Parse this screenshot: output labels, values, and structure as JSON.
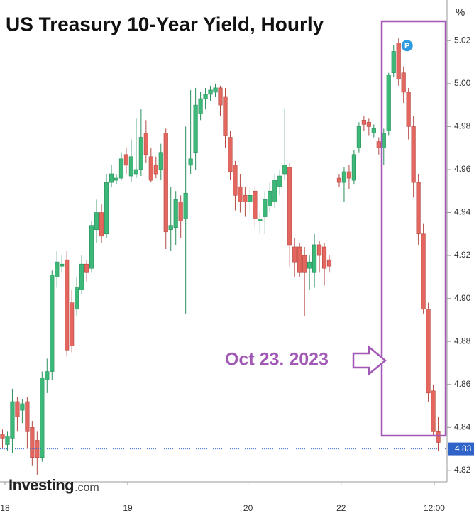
{
  "chart_data": {
    "type": "candlestick",
    "title": "US Treasury 10-Year Yield, Hourly",
    "y_unit": "%",
    "annotation": "Oct 23. 2023",
    "marker": "P",
    "brand": "Investing",
    "brand_suffix": ".com",
    "up_color": "#3cb878",
    "down_color": "#e3675f",
    "x": [
      0,
      1,
      2,
      3,
      4,
      5,
      6,
      7,
      8,
      9,
      10,
      11,
      12,
      13,
      14,
      15,
      16,
      17,
      18,
      19,
      20,
      21,
      22,
      23,
      24,
      25,
      26,
      27,
      28,
      29,
      30,
      31,
      32,
      33,
      34,
      35,
      36,
      37,
      38,
      39,
      40,
      41,
      42,
      43,
      44,
      45,
      46,
      47,
      48,
      49,
      50,
      51,
      52,
      53,
      54,
      55,
      56,
      57,
      58,
      59,
      60,
      61,
      62,
      63,
      64,
      65,
      66,
      68,
      69,
      70,
      71,
      72,
      73,
      74,
      75,
      76,
      77,
      78,
      79,
      80,
      81,
      82,
      83,
      84,
      85,
      86,
      87,
      88
    ],
    "open": [
      4.837,
      4.832,
      4.835,
      4.852,
      4.848,
      4.852,
      4.84,
      4.834,
      4.826,
      4.862,
      4.866,
      4.91,
      4.915,
      4.918,
      4.898,
      4.895,
      4.904,
      4.916,
      4.914,
      4.932,
      4.94,
      4.93,
      4.954,
      4.955,
      4.956,
      4.967,
      4.957,
      4.958,
      4.96,
      4.977,
      4.966,
      4.962,
      4.96,
      4.977,
      4.932,
      4.933,
      4.945,
      4.937,
      4.962,
      4.968,
      4.986,
      4.993,
      4.995,
      4.996,
      4.998,
      4.994,
      4.975,
      4.962,
      4.952,
      4.948,
      4.945,
      4.95,
      4.936,
      4.938,
      4.943,
      4.945,
      4.952,
      4.958,
      4.961,
      4.924,
      4.924,
      4.92,
      4.914,
      4.912,
      4.925,
      4.924,
      4.918,
      4.956,
      4.954,
      4.959,
      4.955,
      4.97,
      4.983,
      4.982,
      4.977,
      4.973,
      4.97,
      4.978,
      5.005,
      5.019,
      5.005,
      4.996,
      4.98,
      4.954,
      4.93,
      4.895,
      4.857,
      4.838
    ],
    "high": [
      4.839,
      4.838,
      4.858,
      4.854,
      4.853,
      4.854,
      4.843,
      4.838,
      4.866,
      4.872,
      4.913,
      4.922,
      4.92,
      4.922,
      4.904,
      4.91,
      4.92,
      4.918,
      4.936,
      4.946,
      4.944,
      4.958,
      4.962,
      4.958,
      4.968,
      4.97,
      4.974,
      4.984,
      4.988,
      4.983,
      4.97,
      4.966,
      4.972,
      4.979,
      4.952,
      4.95,
      4.948,
      4.98,
      4.997,
      4.998,
      4.996,
      4.998,
      4.999,
      5.0,
      4.999,
      4.998,
      4.978,
      4.964,
      4.958,
      4.952,
      4.952,
      4.952,
      4.94,
      4.95,
      4.954,
      4.958,
      4.96,
      4.988,
      4.963,
      4.928,
      4.926,
      4.924,
      4.92,
      4.93,
      4.927,
      4.926,
      4.92,
      4.958,
      4.961,
      4.962,
      4.969,
      4.982,
      4.985,
      4.984,
      4.981,
      4.975,
      4.979,
      5.005,
      5.018,
      5.021,
      5.008,
      4.998,
      4.985,
      4.958,
      4.935,
      4.898,
      4.86,
      4.845
    ],
    "low": [
      4.83,
      4.829,
      4.828,
      4.838,
      4.842,
      4.83,
      4.822,
      4.818,
      4.824,
      4.856,
      4.862,
      4.905,
      4.912,
      4.873,
      4.875,
      4.892,
      4.902,
      4.908,
      4.912,
      4.926,
      4.926,
      4.928,
      4.952,
      4.953,
      4.955,
      4.958,
      4.954,
      4.956,
      4.957,
      4.963,
      4.954,
      4.956,
      4.955,
      4.923,
      4.922,
      4.925,
      4.928,
      4.893,
      4.958,
      4.96,
      4.983,
      4.988,
      4.992,
      4.994,
      4.985,
      4.97,
      4.955,
      4.941,
      4.94,
      4.938,
      4.94,
      4.933,
      4.93,
      4.93,
      4.94,
      4.942,
      4.948,
      4.955,
      4.915,
      4.91,
      4.91,
      4.892,
      4.904,
      4.905,
      4.912,
      4.906,
      4.912,
      4.952,
      4.945,
      4.951,
      4.953,
      4.968,
      4.978,
      4.976,
      4.975,
      4.967,
      4.962,
      4.976,
      5.003,
      4.999,
      4.991,
      4.974,
      4.947,
      4.925,
      4.893,
      4.852,
      4.836,
      4.829
    ],
    "close": [
      4.835,
      4.836,
      4.852,
      4.845,
      4.851,
      4.838,
      4.826,
      4.826,
      4.863,
      4.866,
      4.911,
      4.917,
      4.916,
      4.876,
      4.878,
      4.905,
      4.916,
      4.912,
      4.934,
      4.94,
      4.929,
      4.954,
      4.958,
      4.956,
      4.965,
      4.962,
      4.966,
      4.96,
      4.975,
      4.967,
      4.955,
      4.958,
      4.968,
      4.931,
      4.934,
      4.946,
      4.936,
      4.949,
      4.965,
      4.99,
      4.993,
      4.995,
      4.997,
      4.998,
      4.99,
      4.976,
      4.959,
      4.948,
      4.945,
      4.945,
      4.948,
      4.937,
      4.937,
      4.946,
      4.95,
      4.955,
      4.957,
      4.962,
      4.925,
      4.917,
      4.912,
      4.912,
      4.917,
      4.925,
      4.92,
      4.914,
      4.915,
      4.954,
      4.959,
      4.956,
      4.967,
      4.98,
      4.981,
      4.98,
      4.979,
      4.97,
      4.977,
      5.004,
      5.015,
      5.002,
      4.996,
      4.98,
      4.954,
      4.93,
      4.895,
      4.856,
      4.838,
      4.833
    ],
    "xlim": [
      -0.5,
      89.5
    ],
    "xticks": [
      {
        "value": 0.5,
        "label": "18"
      },
      {
        "value": 25.3,
        "label": "19"
      },
      {
        "value": 49.6,
        "label": "20"
      },
      {
        "value": 68.4,
        "label": "22"
      },
      {
        "value": 87.2,
        "label": "12:00"
      }
    ],
    "ylim": [
      4.815,
      5.03
    ],
    "yticks": [
      {
        "value": 4.82,
        "label": "4.82"
      },
      {
        "value": 4.84,
        "label": "4.84"
      },
      {
        "value": 4.86,
        "label": "4.86"
      },
      {
        "value": 4.88,
        "label": "4.88"
      },
      {
        "value": 4.9,
        "label": "4.90"
      },
      {
        "value": 4.92,
        "label": "4.92"
      },
      {
        "value": 4.94,
        "label": "4.94"
      },
      {
        "value": 4.96,
        "label": "4.96"
      },
      {
        "value": 4.98,
        "label": "4.98"
      },
      {
        "value": 5.0,
        "label": "5.00"
      },
      {
        "value": 5.02,
        "label": "5.02"
      }
    ],
    "last_price": {
      "value": 4.83,
      "label": "4.83"
    },
    "marker_index": 79
  }
}
